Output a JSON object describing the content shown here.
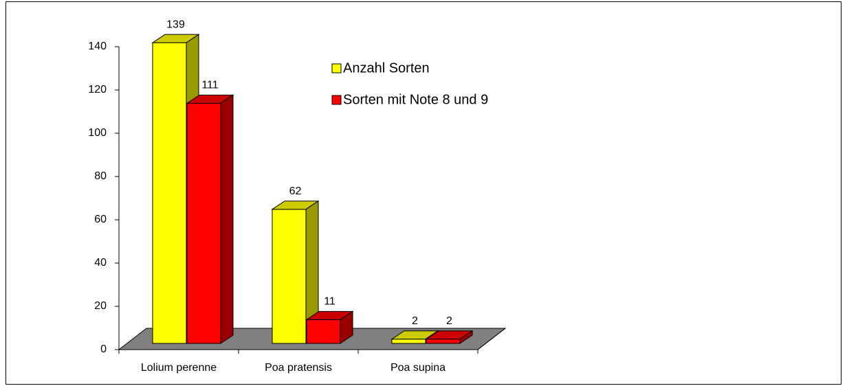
{
  "chart_data": {
    "type": "bar",
    "categories": [
      "Lolium perenne",
      "Poa pratensis",
      "Poa supina"
    ],
    "series": [
      {
        "name": "Anzahl Sorten",
        "color": "#ffff00",
        "values": [
          139,
          62,
          2
        ]
      },
      {
        "name": "Sorten mit Note 8 und 9",
        "color": "#ff0000",
        "values": [
          111,
          11,
          2
        ]
      }
    ],
    "ylim": [
      0,
      140
    ],
    "yticks": [
      0,
      20,
      40,
      60,
      80,
      100,
      120,
      140
    ]
  }
}
